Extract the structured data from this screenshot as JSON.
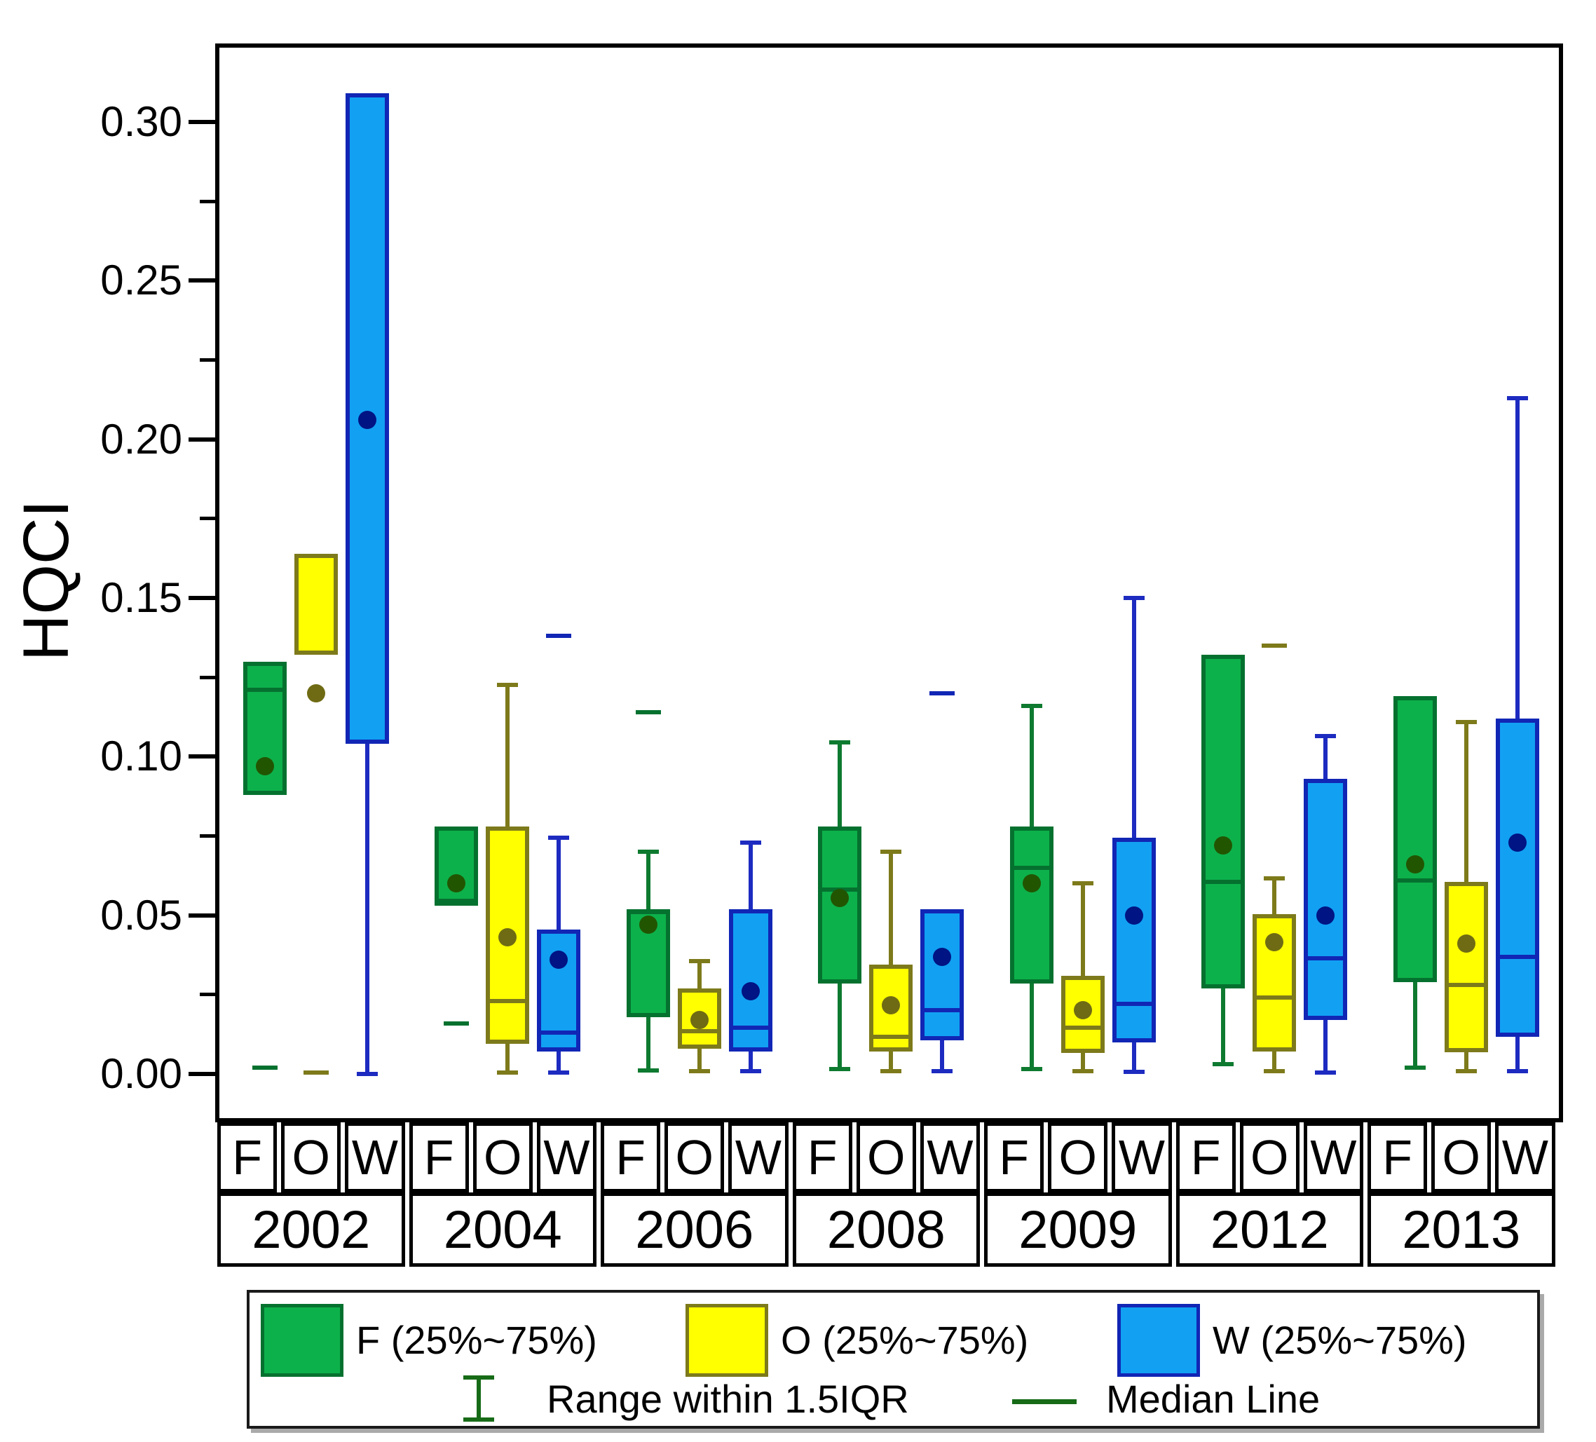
{
  "y_axis": {
    "label": "HQCI",
    "major": [
      {
        "label": "0.30",
        "value": 0.3
      },
      {
        "label": "0.25",
        "value": 0.25
      },
      {
        "label": "0.20",
        "value": 0.2
      },
      {
        "label": "0.15",
        "value": 0.15
      },
      {
        "label": "0.10",
        "value": 0.1
      },
      {
        "label": "0.05",
        "value": 0.05
      },
      {
        "label": "0.00",
        "value": 0.0
      }
    ],
    "minor_values": [
      0.275,
      0.225,
      0.175,
      0.125,
      0.075,
      0.025
    ]
  },
  "x_axis": {
    "letters": [
      "F",
      "O",
      "W"
    ],
    "years": [
      "2002",
      "2004",
      "2006",
      "2008",
      "2009",
      "2012",
      "2013"
    ]
  },
  "legend": {
    "items": [
      {
        "label": "F (25%~75%)",
        "fill": "#0DB14B",
        "edge": "#05712F"
      },
      {
        "label": "O (25%~75%)",
        "fill": "#FFFF00",
        "edge": "#7D7A1B"
      },
      {
        "label": "W (25%~75%)",
        "fill": "#12A0F3",
        "edge": "#1126B5"
      }
    ],
    "range_label": "Range within 1.5IQR",
    "median_label": "Median Line"
  },
  "chart_data": {
    "type": "boxplot",
    "title": "",
    "xlabel": "",
    "ylabel": "HQCI",
    "ylim": [
      0,
      0.325
    ],
    "grid": false,
    "legend_position": "bottom",
    "categories": [
      "2002",
      "2004",
      "2006",
      "2008",
      "2009",
      "2012",
      "2013"
    ],
    "series": [
      {
        "name": "F",
        "legend_label": "F (25%~75%)",
        "fill": "#0DB14B",
        "edge": "#05712F",
        "whisker_color": "#0E7A30",
        "mean_color": "#225500",
        "boxes": [
          {
            "year": "2002",
            "q1": 0.088,
            "median": 0.121,
            "q3": 0.13,
            "mean": 0.097,
            "whisker_low": null,
            "whisker_high": null,
            "extreme_dash": 0.002
          },
          {
            "year": "2004",
            "q1": 0.053,
            "median": 0.0545,
            "q3": 0.078,
            "mean": 0.06,
            "whisker_low": null,
            "whisker_high": null,
            "extreme_dash": 0.016
          },
          {
            "year": "2006",
            "q1": 0.018,
            "median": 0.051,
            "q3": 0.052,
            "mean": 0.047,
            "whisker_low": 0.001,
            "whisker_high": 0.07,
            "extreme_dash": 0.114
          },
          {
            "year": "2008",
            "q1": 0.0285,
            "median": 0.058,
            "q3": 0.078,
            "mean": 0.0555,
            "whisker_low": 0.0015,
            "whisker_high": 0.1045,
            "extreme_dash": null
          },
          {
            "year": "2009",
            "q1": 0.0285,
            "median": 0.065,
            "q3": 0.078,
            "mean": 0.06,
            "whisker_low": 0.0015,
            "whisker_high": 0.116,
            "extreme_dash": null
          },
          {
            "year": "2012",
            "q1": 0.027,
            "median": 0.0605,
            "q3": 0.132,
            "mean": 0.072,
            "whisker_low": 0.003,
            "whisker_high": null,
            "extreme_dash": null
          },
          {
            "year": "2013",
            "q1": 0.029,
            "median": 0.061,
            "q3": 0.119,
            "mean": 0.066,
            "whisker_low": 0.002,
            "whisker_high": null,
            "extreme_dash": null
          }
        ]
      },
      {
        "name": "O",
        "legend_label": "O (25%~75%)",
        "fill": "#FFFF00",
        "edge": "#7D7A1B",
        "whisker_color": "#7D7A1B",
        "mean_color": "#6F6B14",
        "boxes": [
          {
            "year": "2002",
            "q1": 0.132,
            "median": null,
            "q3": 0.164,
            "mean": 0.12,
            "whisker_low": null,
            "whisker_high": null,
            "extreme_dash": 0.0005
          },
          {
            "year": "2004",
            "q1": 0.0095,
            "median": 0.023,
            "q3": 0.078,
            "mean": 0.043,
            "whisker_low": 0.0005,
            "whisker_high": 0.1225,
            "extreme_dash": null
          },
          {
            "year": "2006",
            "q1": 0.008,
            "median": 0.0135,
            "q3": 0.027,
            "mean": 0.017,
            "whisker_low": 0.0008,
            "whisker_high": 0.0355,
            "extreme_dash": null
          },
          {
            "year": "2008",
            "q1": 0.007,
            "median": 0.0117,
            "q3": 0.0345,
            "mean": 0.0217,
            "whisker_low": 0.0008,
            "whisker_high": 0.07,
            "extreme_dash": null
          },
          {
            "year": "2009",
            "q1": 0.0066,
            "median": 0.0146,
            "q3": 0.031,
            "mean": 0.02,
            "whisker_low": 0.0008,
            "whisker_high": 0.06,
            "extreme_dash": null
          },
          {
            "year": "2012",
            "q1": 0.007,
            "median": 0.024,
            "q3": 0.0504,
            "mean": 0.0415,
            "whisker_low": 0.0008,
            "whisker_high": 0.0617,
            "extreme_dash": 0.135
          },
          {
            "year": "2013",
            "q1": 0.0068,
            "median": 0.028,
            "q3": 0.0605,
            "mean": 0.041,
            "whisker_low": 0.0008,
            "whisker_high": 0.111,
            "extreme_dash": null
          }
        ]
      },
      {
        "name": "W",
        "legend_label": "W (25%~75%)",
        "fill": "#12A0F3",
        "edge": "#1126B5",
        "whisker_color": "#1D2BC0",
        "mean_color": "#001483",
        "boxes": [
          {
            "year": "2002",
            "q1": 0.104,
            "median": null,
            "q3": 0.309,
            "mean": 0.206,
            "whisker_low": 0.0,
            "whisker_high": null,
            "extreme_dash": null
          },
          {
            "year": "2004",
            "q1": 0.007,
            "median": 0.013,
            "q3": 0.0455,
            "mean": 0.036,
            "whisker_low": 0.0005,
            "whisker_high": 0.0745,
            "extreme_dash": 0.138
          },
          {
            "year": "2006",
            "q1": 0.007,
            "median": 0.0145,
            "q3": 0.052,
            "mean": 0.026,
            "whisker_low": 0.0008,
            "whisker_high": 0.073,
            "extreme_dash": null
          },
          {
            "year": "2008",
            "q1": 0.0106,
            "median": 0.02,
            "q3": 0.052,
            "mean": 0.037,
            "whisker_low": 0.0008,
            "whisker_high": null,
            "extreme_dash": 0.12
          },
          {
            "year": "2009",
            "q1": 0.01,
            "median": 0.022,
            "q3": 0.0745,
            "mean": 0.05,
            "whisker_low": 0.0006,
            "whisker_high": 0.15,
            "extreme_dash": null
          },
          {
            "year": "2012",
            "q1": 0.017,
            "median": 0.0365,
            "q3": 0.093,
            "mean": 0.05,
            "whisker_low": 0.0005,
            "whisker_high": 0.1065,
            "extreme_dash": null
          },
          {
            "year": "2013",
            "q1": 0.0117,
            "median": 0.037,
            "q3": 0.112,
            "mean": 0.073,
            "whisker_low": 0.0008,
            "whisker_high": 0.213,
            "extreme_dash": null
          }
        ]
      }
    ]
  }
}
